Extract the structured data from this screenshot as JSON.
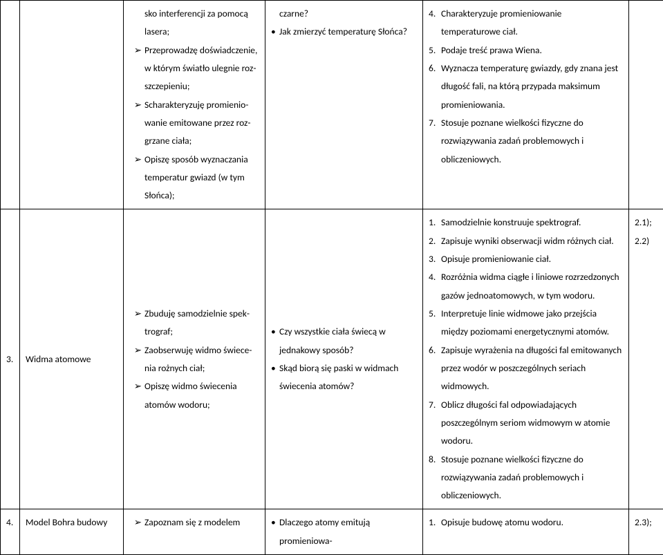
{
  "row1": {
    "col3_arrows": [
      "sko interferencji za pomocą lasera;",
      "Przeprowadzę doświadczenie, w którym światło ulegnie roz­szczepieniu;",
      "Scharakteryzuję promienio­wanie emitowane przez roz­grzane ciała;",
      "Opiszę sposób wyznaczania temperatur gwiazd (w tym Słońca);"
    ],
    "col4_bullets": [
      "czarne?",
      "Jak zmierzyć temperaturę Słońca?"
    ],
    "col5_nums": [
      {
        "n": "4.",
        "t": "Charakteryzuje promieniowanie temperaturowe ciał."
      },
      {
        "n": "5.",
        "t": "Podaje treść prawa Wiena."
      },
      {
        "n": "6.",
        "t": "Wyznacza temperaturę gwiazdy, gdy znana jest długość fali, na którą przypada maksimum promieniowania."
      },
      {
        "n": "7.",
        "t": "Stosuje poznane wielkości fizyczne do rozwiązywania zadań problemowych i obliczeniowych."
      }
    ]
  },
  "row2": {
    "col1": "3.",
    "col2": "Widma atomowe",
    "col3_arrows": [
      "Zbuduję samodzielnie spek­trograf;",
      "Zaobserwuję widmo świece­nia rożnych ciał;",
      "Opiszę widmo świecenia atomów wodoru;"
    ],
    "col4_bullets": [
      "Czy wszystkie ciała świecą w jednakowy sposób?",
      "Skąd biorą się paski w widmach świece­nia atomów?"
    ],
    "col5_nums": [
      {
        "n": "1.",
        "t": "Samodzielnie konstruuje spektrograf."
      },
      {
        "n": "2.",
        "t": "Zapisuje wyniki obserwacji widm różnych ciał."
      },
      {
        "n": "3.",
        "t": "Opisuje promieniowanie ciał."
      },
      {
        "n": "4.",
        "t": "Rozróżnia widma ciągłe i liniowe rozrzedzonych gazów jednoatomowych, w tym wodoru."
      },
      {
        "n": "5.",
        "t": "Interpretuje linie widmowe jako przejścia między poziomami energetycznymi atomów."
      },
      {
        "n": "6.",
        "t": "Zapisuje wyrażenia na długości fal emitowanych przez wodór w poszczególnych seriach widmowych."
      },
      {
        "n": "7.",
        "t": "Oblicz długości fal odpowiadających poszczególnym seriom widmowym w atomie wodoru."
      },
      {
        "n": "8.",
        "t": "Stosuje poznane wielkości fizyczne do rozwiązywania zadań problemowych i obliczeniowych."
      }
    ],
    "col6_lines": [
      "2.1);",
      "2.2)"
    ]
  },
  "row3": {
    "col1": "4.",
    "col2": "Model Bohra budowy",
    "col3_arrow": "Zapoznam się z modelem",
    "col4_bullet": "Dlaczego atomy emitują promieniowa-",
    "col5_num": {
      "n": "1.",
      "t": "Opisuje budowę atomu wodoru."
    },
    "col6": "2.3);"
  },
  "glyphs": {
    "arrow": "➢",
    "bullet": "•"
  }
}
